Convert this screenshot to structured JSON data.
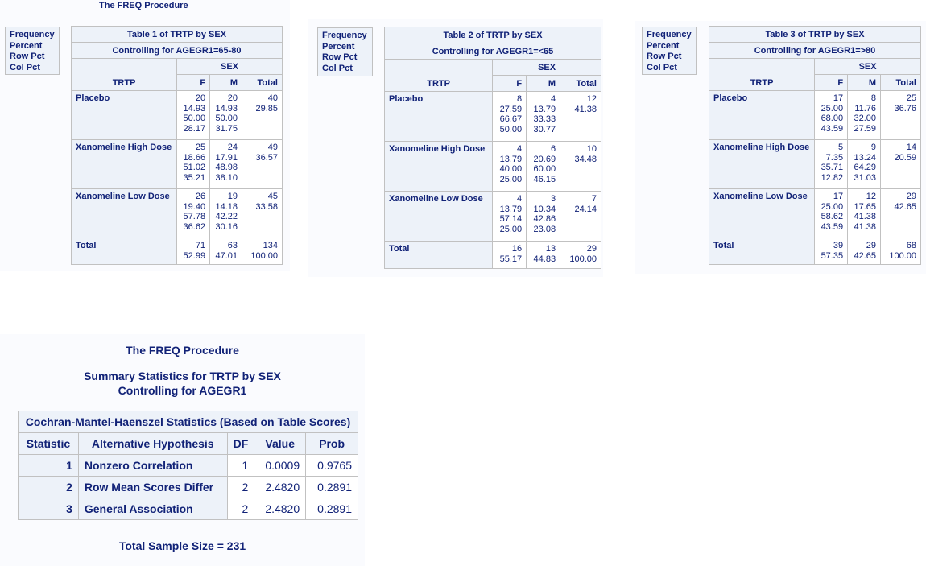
{
  "procedure_title": "The FREQ Procedure",
  "legend": [
    "Frequency",
    "Percent",
    "Row Pct",
    "Col Pct"
  ],
  "col_labels": {
    "trtp": "TRTP",
    "sex": "SEX",
    "f": "F",
    "m": "M",
    "total": "Total"
  },
  "tables": [
    {
      "title": "Table 1 of TRTP by SEX",
      "control": "Controlling for AGEGR1=65-80",
      "rows": [
        {
          "label": "Placebo",
          "f": [
            "20",
            "14.93",
            "50.00",
            "28.17"
          ],
          "m": [
            "20",
            "14.93",
            "50.00",
            "31.75"
          ],
          "total": [
            "40",
            "29.85"
          ]
        },
        {
          "label": "Xanomeline High Dose",
          "f": [
            "25",
            "18.66",
            "51.02",
            "35.21"
          ],
          "m": [
            "24",
            "17.91",
            "48.98",
            "38.10"
          ],
          "total": [
            "49",
            "36.57"
          ]
        },
        {
          "label": "Xanomeline Low Dose",
          "f": [
            "26",
            "19.40",
            "57.78",
            "36.62"
          ],
          "m": [
            "19",
            "14.18",
            "42.22",
            "30.16"
          ],
          "total": [
            "45",
            "33.58"
          ]
        }
      ],
      "total_row": {
        "label": "Total",
        "f": [
          "71",
          "52.99"
        ],
        "m": [
          "63",
          "47.01"
        ],
        "total": [
          "134",
          "100.00"
        ]
      }
    },
    {
      "title": "Table 2 of TRTP by SEX",
      "control": "Controlling for AGEGR1=<65",
      "rows": [
        {
          "label": "Placebo",
          "f": [
            "8",
            "27.59",
            "66.67",
            "50.00"
          ],
          "m": [
            "4",
            "13.79",
            "33.33",
            "30.77"
          ],
          "total": [
            "12",
            "41.38"
          ]
        },
        {
          "label": "Xanomeline High Dose",
          "f": [
            "4",
            "13.79",
            "40.00",
            "25.00"
          ],
          "m": [
            "6",
            "20.69",
            "60.00",
            "46.15"
          ],
          "total": [
            "10",
            "34.48"
          ]
        },
        {
          "label": "Xanomeline Low Dose",
          "f": [
            "4",
            "13.79",
            "57.14",
            "25.00"
          ],
          "m": [
            "3",
            "10.34",
            "42.86",
            "23.08"
          ],
          "total": [
            "7",
            "24.14"
          ]
        }
      ],
      "total_row": {
        "label": "Total",
        "f": [
          "16",
          "55.17"
        ],
        "m": [
          "13",
          "44.83"
        ],
        "total": [
          "29",
          "100.00"
        ]
      }
    },
    {
      "title": "Table 3 of TRTP by SEX",
      "control": "Controlling for AGEGR1=>80",
      "rows": [
        {
          "label": "Placebo",
          "f": [
            "17",
            "25.00",
            "68.00",
            "43.59"
          ],
          "m": [
            "8",
            "11.76",
            "32.00",
            "27.59"
          ],
          "total": [
            "25",
            "36.76"
          ]
        },
        {
          "label": "Xanomeline High Dose",
          "f": [
            "5",
            "7.35",
            "35.71",
            "12.82"
          ],
          "m": [
            "9",
            "13.24",
            "64.29",
            "31.03"
          ],
          "total": [
            "14",
            "20.59"
          ]
        },
        {
          "label": "Xanomeline Low Dose",
          "f": [
            "17",
            "25.00",
            "58.62",
            "43.59"
          ],
          "m": [
            "12",
            "17.65",
            "41.38",
            "41.38"
          ],
          "total": [
            "29",
            "42.65"
          ]
        }
      ],
      "total_row": {
        "label": "Total",
        "f": [
          "39",
          "57.35"
        ],
        "m": [
          "29",
          "42.65"
        ],
        "total": [
          "68",
          "100.00"
        ]
      }
    }
  ],
  "summary": {
    "proc_title": "The FREQ Procedure",
    "title_line1": "Summary Statistics for TRTP by SEX",
    "title_line2": "Controlling for AGEGR1",
    "cmh_caption": "Cochran-Mantel-Haenszel Statistics (Based on Table Scores)",
    "headers": [
      "Statistic",
      "Alternative Hypothesis",
      "DF",
      "Value",
      "Prob"
    ],
    "rows": [
      {
        "stat": "1",
        "hyp": "Nonzero Correlation",
        "df": "1",
        "value": "0.0009",
        "prob": "0.9765"
      },
      {
        "stat": "2",
        "hyp": "Row Mean Scores Differ",
        "df": "2",
        "value": "2.4820",
        "prob": "0.2891"
      },
      {
        "stat": "3",
        "hyp": "General Association",
        "df": "2",
        "value": "2.4820",
        "prob": "0.2891"
      }
    ],
    "sample_size": "Total Sample Size = 231"
  }
}
